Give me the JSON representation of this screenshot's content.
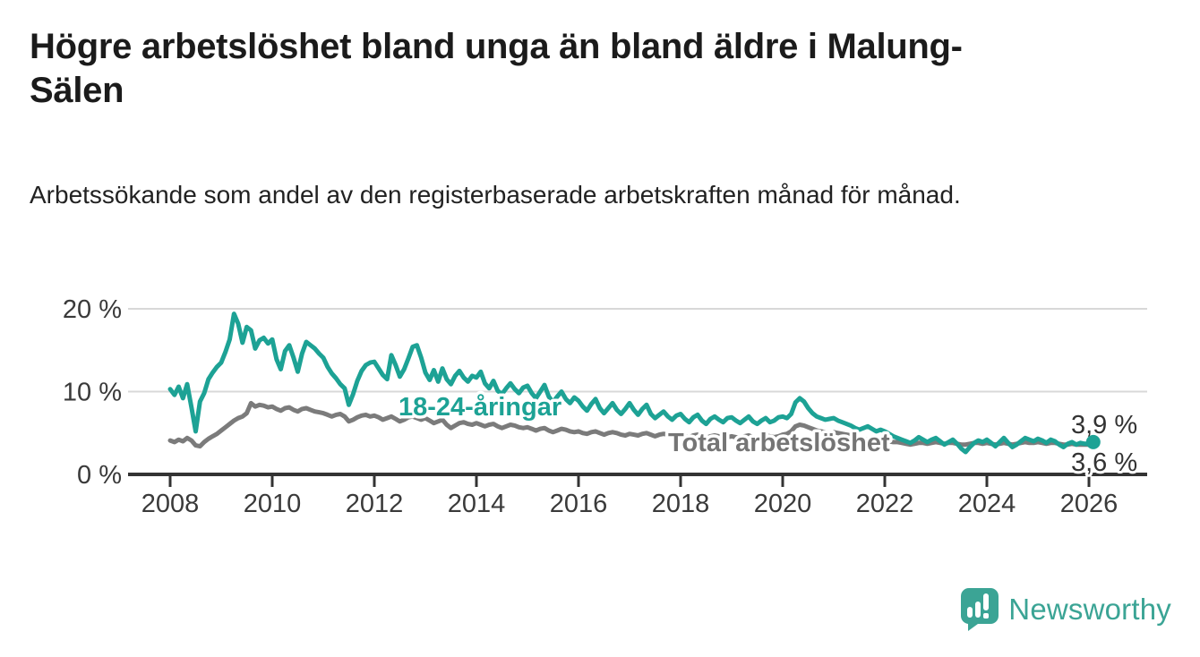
{
  "header": {
    "title": "Högre arbetslöshet bland unga än bland äldre i Malung-Sälen",
    "subtitle": "Arbetssökande som andel av den registerbaserade arbetskraften månad för månad."
  },
  "colors": {
    "youth_line": "#1da295",
    "total_line": "#7b7b7b",
    "axis": "#333333",
    "gridline": "#d8d8d8",
    "tick_text": "#3a3a3a",
    "title_text": "#1b1b1b",
    "logo_teal": "#3ba495"
  },
  "chart_data": {
    "type": "line",
    "title": "Högre arbetslöshet bland unga än bland äldre i Malung-Sälen",
    "subtitle": "Arbetssökande som andel av den registerbaserade arbetskraften månad för månad.",
    "xlabel": "",
    "ylabel": "",
    "x_start": "2008-01",
    "x_end": "2026-02",
    "x_freq": "monthly",
    "x_tick_labels": [
      "2008",
      "2010",
      "2012",
      "2014",
      "2016",
      "2018",
      "2020",
      "2022",
      "2024",
      "2026"
    ],
    "y_ticks_pct": [
      0,
      10,
      20
    ],
    "y_tick_labels": [
      "0 %",
      "10 %",
      "20 %"
    ],
    "ylim": [
      0,
      22
    ],
    "grid": "horizontal-only",
    "legend_position": "inline-labels",
    "end_labels": [
      {
        "text": "3,9 %",
        "series": "18-24-åringar",
        "value": 3.9
      },
      {
        "text": "3,6 %",
        "series": "Total arbetslöshet",
        "value": 3.6
      }
    ],
    "series": [
      {
        "name": "18-24-åringar",
        "inline_label": "18-24-åringar",
        "color": "#1da295",
        "values": [
          10.3,
          9.6,
          10.6,
          9.2,
          10.9,
          8.1,
          5.2,
          8.8,
          9.8,
          11.5,
          12.3,
          13.0,
          13.5,
          14.8,
          16.3,
          19.4,
          18.2,
          15.9,
          17.8,
          17.4,
          15.2,
          16.2,
          16.5,
          15.8,
          16.3,
          13.9,
          12.7,
          14.9,
          15.6,
          14.1,
          12.4,
          14.6,
          16.0,
          15.6,
          15.2,
          14.6,
          14.1,
          13.0,
          12.2,
          11.6,
          10.9,
          10.4,
          8.4,
          9.7,
          11.3,
          12.5,
          13.2,
          13.5,
          13.6,
          12.8,
          12.0,
          11.5,
          14.4,
          13.2,
          11.8,
          12.7,
          14.0,
          15.4,
          15.6,
          14.1,
          12.3,
          11.4,
          12.6,
          11.2,
          12.8,
          11.5,
          10.9,
          11.9,
          12.5,
          11.7,
          11.2,
          11.9,
          11.7,
          12.4,
          11.0,
          10.4,
          11.3,
          10.1,
          9.7,
          10.4,
          11.0,
          10.3,
          9.8,
          10.5,
          10.7,
          9.8,
          9.2,
          10.0,
          10.8,
          9.4,
          8.7,
          9.4,
          10.0,
          9.1,
          8.6,
          9.3,
          8.9,
          8.2,
          7.7,
          8.5,
          9.1,
          8.0,
          7.4,
          8.0,
          8.6,
          7.8,
          7.3,
          7.9,
          8.6,
          7.8,
          7.2,
          7.9,
          8.4,
          7.3,
          6.8,
          7.2,
          7.6,
          7.0,
          6.6,
          7.1,
          7.3,
          6.7,
          6.3,
          6.9,
          7.2,
          6.5,
          6.1,
          6.7,
          7.0,
          6.6,
          6.3,
          6.8,
          6.9,
          6.5,
          6.2,
          6.6,
          7.0,
          6.4,
          6.1,
          6.5,
          6.8,
          6.3,
          6.5,
          6.9,
          7.0,
          6.8,
          7.3,
          8.7,
          9.2,
          8.8,
          8.0,
          7.4,
          7.0,
          6.8,
          6.6,
          6.7,
          6.8,
          6.5,
          6.3,
          6.1,
          5.9,
          5.6,
          5.4,
          5.6,
          5.8,
          5.5,
          5.2,
          5.4,
          5.2,
          4.9,
          4.6,
          4.4,
          4.2,
          4.0,
          3.8,
          4.1,
          4.5,
          4.2,
          3.9,
          4.2,
          4.4,
          4.0,
          3.6,
          3.9,
          4.2,
          3.7,
          3.1,
          2.7,
          3.3,
          3.8,
          4.1,
          3.9,
          4.2,
          3.8,
          3.4,
          3.9,
          4.4,
          3.8,
          3.3,
          3.6,
          4.0,
          4.4,
          4.2,
          4.0,
          4.3,
          4.1,
          3.8,
          4.2,
          4.0,
          3.6,
          3.3,
          3.7,
          3.9,
          3.6,
          3.8,
          3.7,
          3.7,
          3.9
        ]
      },
      {
        "name": "Total arbetslöshet",
        "inline_label": "Total arbetslöshet",
        "color": "#7b7b7b",
        "values": [
          4.1,
          3.9,
          4.2,
          4.0,
          4.4,
          4.1,
          3.5,
          3.4,
          3.9,
          4.3,
          4.6,
          4.9,
          5.3,
          5.7,
          6.1,
          6.5,
          6.8,
          7.0,
          7.4,
          8.6,
          8.2,
          8.4,
          8.3,
          8.1,
          8.2,
          7.9,
          7.7,
          8.0,
          8.1,
          7.8,
          7.6,
          7.9,
          8.0,
          7.8,
          7.6,
          7.5,
          7.4,
          7.2,
          7.0,
          7.2,
          7.3,
          7.0,
          6.4,
          6.6,
          6.9,
          7.1,
          7.2,
          7.0,
          7.1,
          6.9,
          6.6,
          6.8,
          7.0,
          6.7,
          6.4,
          6.6,
          6.9,
          7.0,
          6.8,
          6.6,
          6.8,
          6.5,
          6.2,
          6.4,
          6.6,
          6.0,
          5.6,
          5.9,
          6.2,
          6.3,
          6.1,
          6.0,
          6.2,
          6.0,
          5.8,
          6.0,
          6.1,
          5.8,
          5.6,
          5.8,
          6.0,
          5.9,
          5.7,
          5.6,
          5.7,
          5.5,
          5.3,
          5.5,
          5.6,
          5.3,
          5.1,
          5.3,
          5.5,
          5.4,
          5.2,
          5.1,
          5.2,
          5.0,
          4.9,
          5.1,
          5.2,
          5.0,
          4.8,
          5.0,
          5.1,
          5.0,
          4.8,
          4.7,
          4.9,
          4.8,
          4.7,
          4.9,
          5.0,
          4.8,
          4.6,
          4.8,
          4.9,
          4.8,
          4.6,
          4.6,
          4.7,
          4.6,
          4.5,
          4.7,
          4.8,
          4.6,
          4.4,
          4.6,
          4.7,
          4.6,
          4.5,
          4.5,
          4.6,
          4.5,
          4.4,
          4.6,
          4.7,
          4.5,
          4.4,
          4.5,
          4.7,
          4.6,
          4.5,
          4.6,
          4.8,
          4.9,
          5.2,
          5.8,
          6.0,
          5.9,
          5.7,
          5.5,
          5.3,
          5.2,
          5.1,
          5.0,
          5.1,
          5.0,
          4.9,
          4.8,
          4.7,
          4.5,
          4.4,
          4.3,
          4.2,
          4.1,
          4.0,
          4.0,
          4.1,
          4.0,
          3.9,
          3.9,
          3.8,
          3.7,
          3.6,
          3.7,
          3.8,
          3.8,
          3.7,
          3.8,
          3.9,
          3.8,
          3.7,
          3.8,
          3.8,
          3.7,
          3.6,
          3.6,
          3.7,
          3.8,
          3.8,
          3.7,
          3.8,
          3.7,
          3.6,
          3.7,
          3.8,
          3.7,
          3.6,
          3.7,
          3.8,
          3.9,
          3.8,
          3.8,
          3.9,
          3.8,
          3.7,
          3.8,
          3.8,
          3.7,
          3.6,
          3.6,
          3.7,
          3.6,
          3.6,
          3.6,
          3.6,
          3.6
        ]
      }
    ]
  },
  "branding": {
    "logo_text": "Newsworthy"
  }
}
